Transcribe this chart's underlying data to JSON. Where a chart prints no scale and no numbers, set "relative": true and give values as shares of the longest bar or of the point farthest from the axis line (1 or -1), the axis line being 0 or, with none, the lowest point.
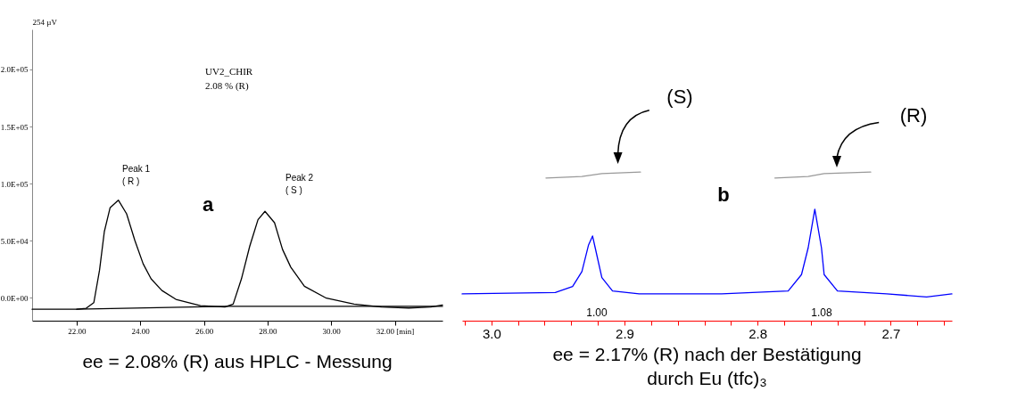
{
  "chart_data": [
    {
      "type": "line",
      "title": "ee = 2.08% (R) aus HPLC - Messung",
      "ylabel": "254 µV",
      "xlim": [
        20.6,
        33.5
      ],
      "ylim": [
        -20000,
        235000
      ],
      "xticks": [
        {
          "value": 22,
          "label": "22.00"
        },
        {
          "value": 24,
          "label": "24.00"
        },
        {
          "value": 26,
          "label": "26.00"
        },
        {
          "value": 28,
          "label": "28.00"
        },
        {
          "value": 30,
          "label": "30.00"
        },
        {
          "value": 32,
          "label": "32.00 [min]"
        }
      ],
      "yticks": [
        {
          "value": 0,
          "label": "0.0E+00"
        },
        {
          "value": 50000,
          "label": "5.0E+04"
        },
        {
          "value": 100000,
          "label": "1.0E+05"
        },
        {
          "value": 150000,
          "label": "1.5E+05"
        },
        {
          "value": 200000,
          "label": "2.0E+05"
        }
      ],
      "series": [
        {
          "color": "#000000",
          "x": [
            20.6,
            22.0,
            22.3,
            22.54,
            22.72,
            22.87,
            23.05,
            23.31,
            23.57,
            23.83,
            24.09,
            24.34,
            24.68,
            25.12,
            25.89,
            26.66,
            26.92,
            27.18,
            27.44,
            27.7,
            27.92,
            28.22,
            28.47,
            28.73,
            29.16,
            29.85,
            30.72,
            31.58,
            32.44,
            33.13,
            33.5
          ],
          "values": [
            -10000,
            -10000,
            -9100,
            -4200,
            24300,
            58000,
            78800,
            85500,
            73600,
            50200,
            29800,
            16600,
            6400,
            -1300,
            -6800,
            -8000,
            -5500,
            16600,
            45100,
            68400,
            75700,
            65800,
            42500,
            26900,
            10100,
            -300,
            -5400,
            -8000,
            -8900,
            -8000,
            -6200
          ]
        },
        {
          "color": "#000000",
          "x": [
            22.0,
            26.7,
            33.5
          ],
          "values": [
            -10000,
            -7500,
            -7500
          ]
        }
      ],
      "annotations": [
        "Peak 1",
        "( R )",
        "Peak 2",
        "( S )",
        "UV2_CHIR",
        "2.08 % (R)",
        "a"
      ]
    },
    {
      "type": "line",
      "title": "ee = 2.17% (R) nach der Bestätigung durch Eu (tfc)₃",
      "relative": true,
      "xlim": [
        3.022,
        2.654
      ],
      "xticks": [
        {
          "value": 3.02,
          "label": null
        },
        {
          "value": 3.0,
          "label": "3.0"
        },
        {
          "value": 2.98,
          "label": null
        },
        {
          "value": 2.96,
          "label": null
        },
        {
          "value": 2.94,
          "label": null
        },
        {
          "value": 2.92,
          "label": null
        },
        {
          "value": 2.9,
          "label": "2.9"
        },
        {
          "value": 2.88,
          "label": null
        },
        {
          "value": 2.86,
          "label": null
        },
        {
          "value": 2.84,
          "label": null
        },
        {
          "value": 2.82,
          "label": null
        },
        {
          "value": 2.8,
          "label": "2.8"
        },
        {
          "value": 2.78,
          "label": null
        },
        {
          "value": 2.76,
          "label": null
        },
        {
          "value": 2.74,
          "label": null
        },
        {
          "value": 2.72,
          "label": null
        },
        {
          "value": 2.7,
          "label": "2.7"
        },
        {
          "value": 2.68,
          "label": null
        },
        {
          "value": 2.66,
          "label": null
        }
      ],
      "series": [
        {
          "color": "#0000ff",
          "x": [
            3.022,
            2.952,
            2.939,
            2.932,
            2.927,
            2.924,
            2.922,
            2.917,
            2.909,
            2.889,
            2.827,
            2.777,
            2.767,
            2.762,
            2.757,
            2.752,
            2.75,
            2.74,
            2.703,
            2.673,
            2.654
          ],
          "values": [
            0.18,
            0.19,
            0.23,
            0.33,
            0.51,
            0.57,
            0.49,
            0.29,
            0.2,
            0.18,
            0.18,
            0.2,
            0.31,
            0.49,
            0.75,
            0.49,
            0.31,
            0.2,
            0.18,
            0.16,
            0.18
          ]
        },
        {
          "color": "#999999",
          "x": [
            2.959,
            2.932,
            2.917,
            2.888
          ],
          "values": [
            0.96,
            0.97,
            0.99,
            1
          ]
        },
        {
          "color": "#999999",
          "x": [
            2.787,
            2.762,
            2.75,
            2.715
          ],
          "values": [
            0.96,
            0.97,
            0.99,
            1
          ]
        }
      ],
      "annotations": [
        "(S)",
        "(R)",
        "b",
        "1.00",
        "1.08"
      ]
    }
  ]
}
